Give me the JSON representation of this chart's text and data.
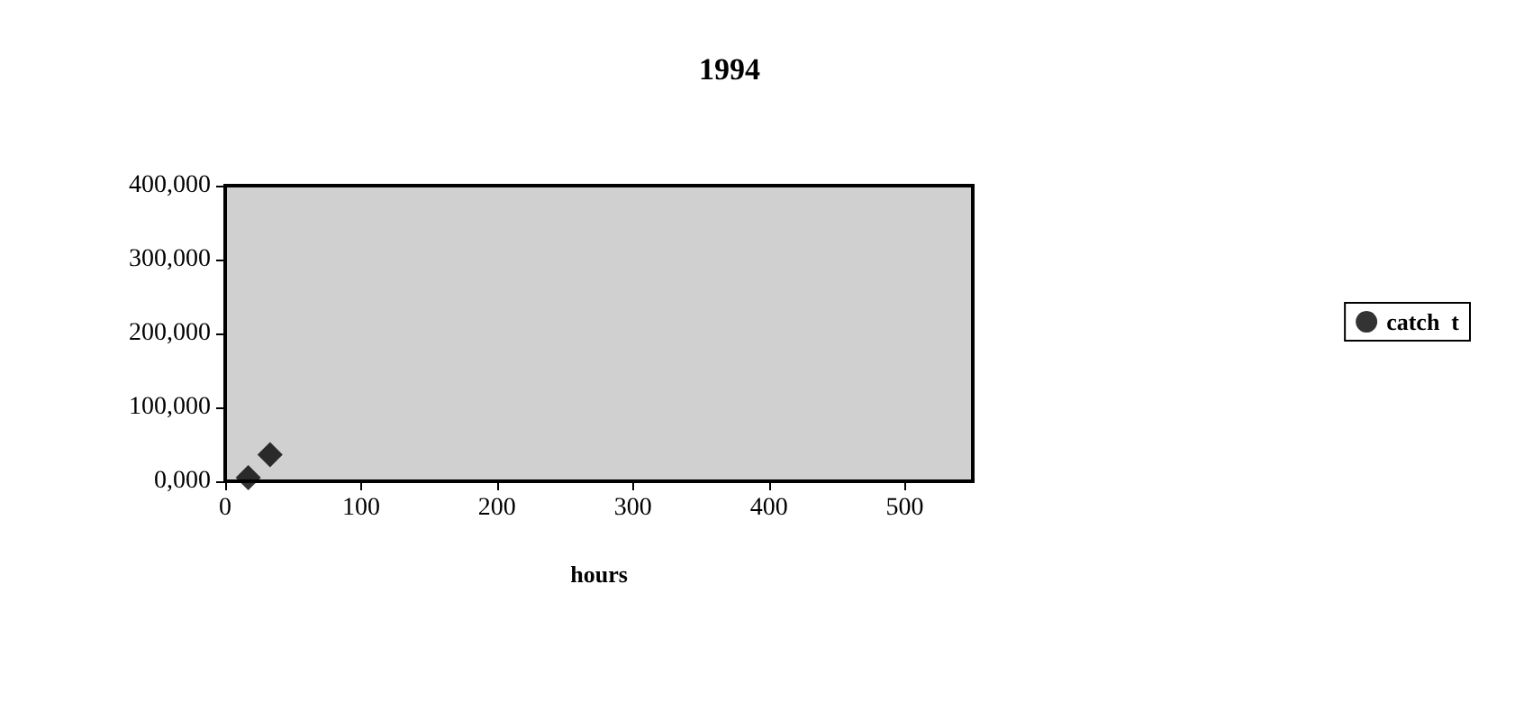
{
  "chart_data": {
    "type": "scatter",
    "title": "1994",
    "xlabel": "hours",
    "x": [
      17,
      33
    ],
    "series": [
      {
        "name": "catch  t",
        "color": "#000000",
        "values": [
          5000,
          36000
        ]
      }
    ],
    "xlim": [
      0,
      550
    ],
    "xticks": [
      0,
      100,
      200,
      300,
      400,
      500
    ],
    "ylim": [
      0,
      400000
    ],
    "yticks": [
      {
        "value": 0,
        "label": "0,000"
      },
      {
        "value": 100000,
        "label": "100,000"
      },
      {
        "value": 200000,
        "label": "200,000"
      },
      {
        "value": 300000,
        "label": "300,000"
      },
      {
        "value": 400000,
        "label": "400,000"
      }
    ],
    "grid": false,
    "legend": "right",
    "marker": "diamond"
  }
}
